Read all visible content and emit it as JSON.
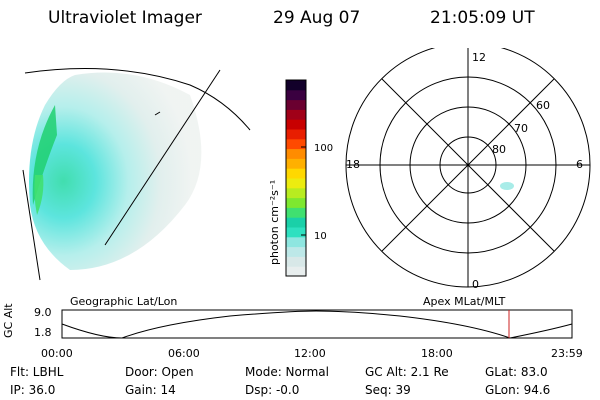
{
  "header": {
    "title": "Ultraviolet Imager",
    "date": "29 Aug 07",
    "time": "21:05:09 UT"
  },
  "colorbar": {
    "unit_label": "photon cm⁻²s⁻¹",
    "ticks": [
      "100",
      "10"
    ],
    "colors": [
      "#e8eeee",
      "#d8e8e8",
      "#bde8e8",
      "#8ee6e0",
      "#2ee0c0",
      "#1ad0a8",
      "#40e070",
      "#7ee830",
      "#b8ec20",
      "#ecec10",
      "#ffd800",
      "#ffb000",
      "#ff8c00",
      "#ff4a00",
      "#e81e00",
      "#c80000",
      "#a00018",
      "#6a0030",
      "#3a0040",
      "#12002a"
    ]
  },
  "polar": {
    "mlt_labels": {
      "top": "12",
      "left": "18",
      "right": "6",
      "bottom": "0"
    },
    "lat_labels": [
      "60",
      "70",
      "80"
    ]
  },
  "timeline": {
    "ylabel": "GC Alt",
    "ymax": "9.0",
    "ymin": "1.8",
    "left_title": "Geographic Lat/Lon",
    "right_title": "Apex MLat/MLT",
    "xticks": [
      "00:00",
      "06:00",
      "12:00",
      "18:00",
      "23:59"
    ],
    "marker_color": "#cc2222"
  },
  "info": {
    "flt": "Flt: LBHL",
    "ip": "IP: 36.0",
    "door": "Door: Open",
    "gain": "Gain: 14",
    "mode": "Mode: Normal",
    "dsp": "Dsp:   -0.0",
    "gcalt": "GC Alt: 2.1 Re",
    "seq": "Seq: 39",
    "glat": "GLat:  83.0",
    "glon": "GLon:  94.6"
  }
}
